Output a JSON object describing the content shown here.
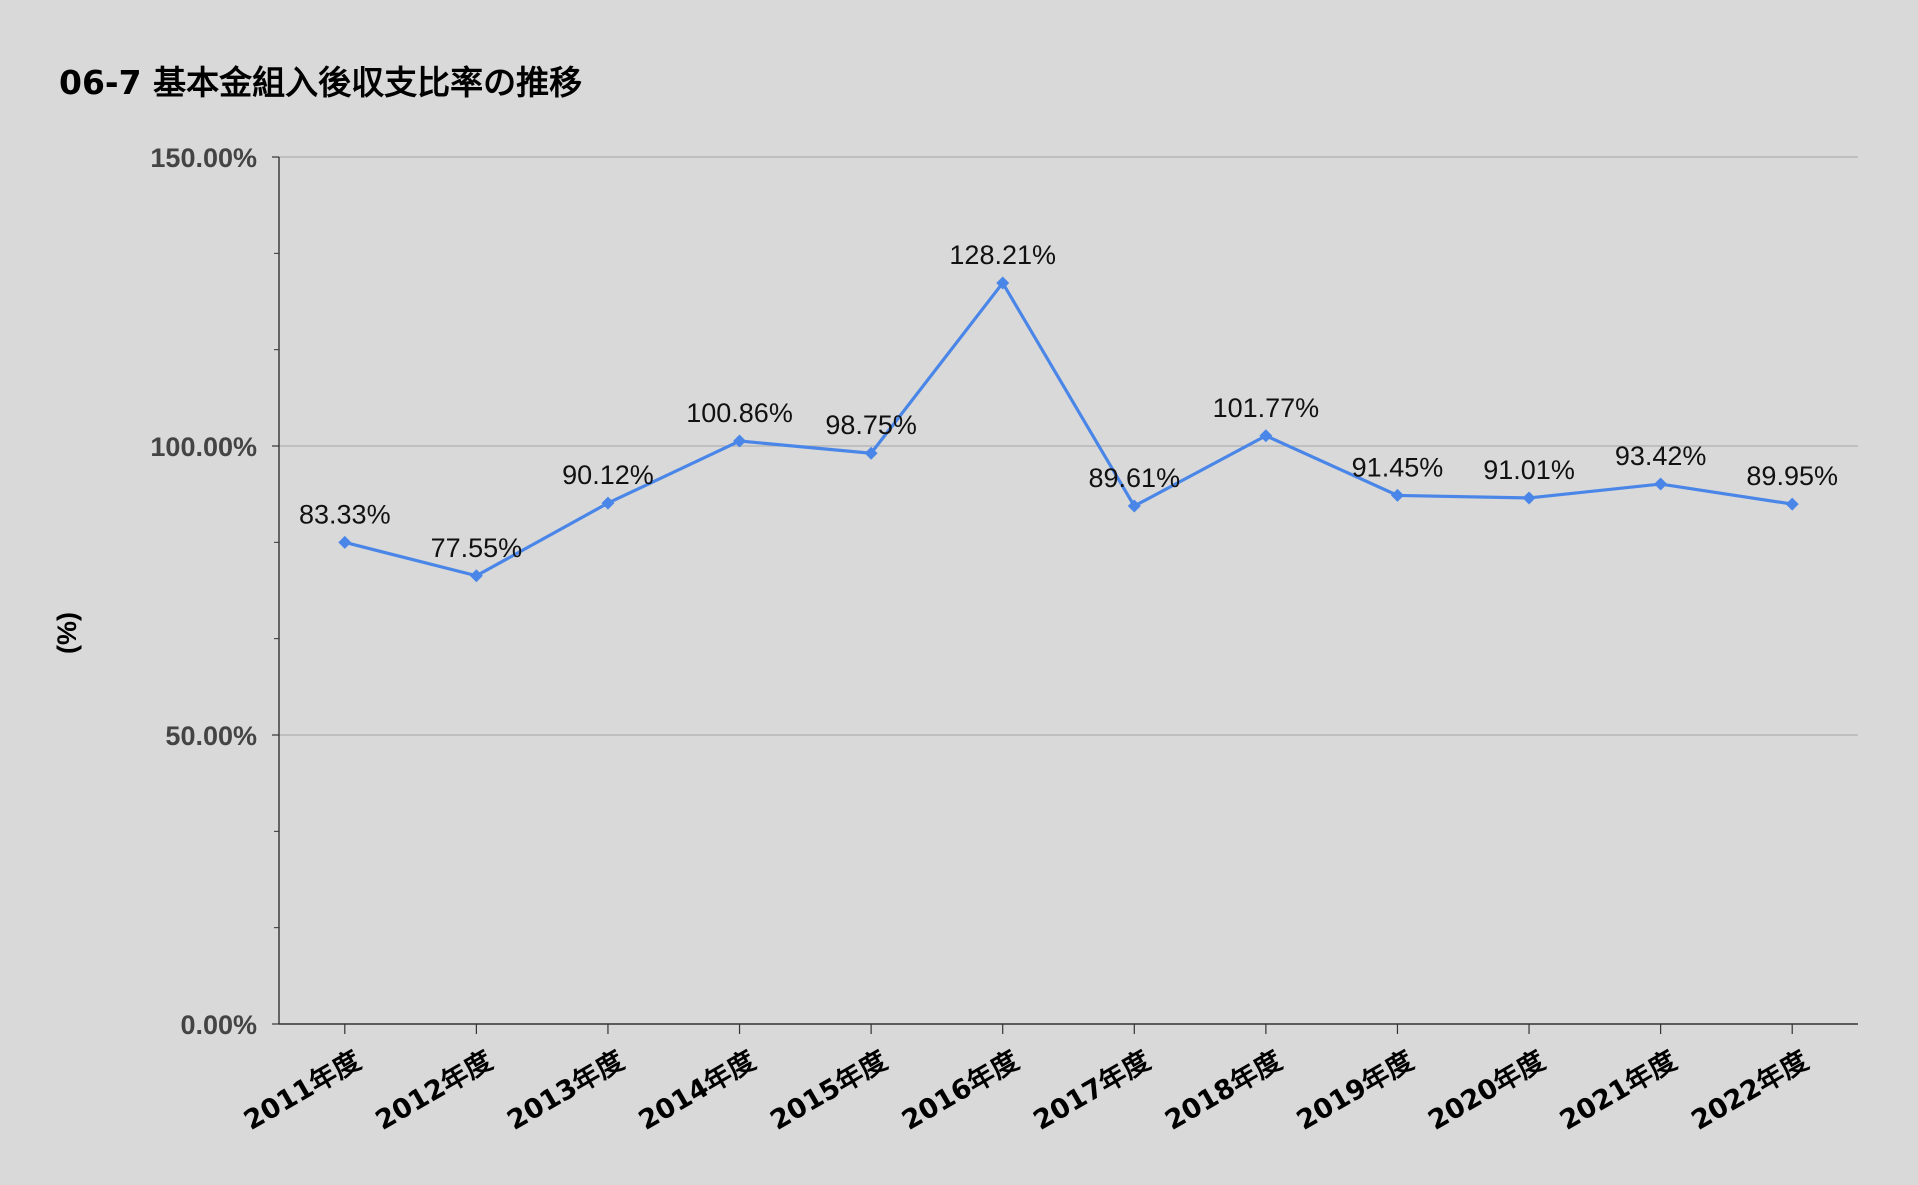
{
  "chart_data": {
    "type": "line",
    "title": "06-7 基本金組入後収支比率の推移",
    "xlabel": "",
    "ylabel": "(%)",
    "categories": [
      "2011年度",
      "2012年度",
      "2013年度",
      "2014年度",
      "2015年度",
      "2016年度",
      "2017年度",
      "2018年度",
      "2019年度",
      "2020年度",
      "2021年度",
      "2022年度"
    ],
    "series": [
      {
        "values": [
          83.33,
          77.55,
          90.12,
          100.86,
          98.75,
          128.21,
          89.61,
          101.77,
          91.45,
          91.01,
          93.42,
          89.95
        ],
        "labels": [
          "83.33%",
          "77.55%",
          "90.12%",
          "100.86%",
          "98.75%",
          "128.21%",
          "89.61%",
          "101.77%",
          "91.45%",
          "91.01%",
          "93.42%",
          "89.95%"
        ]
      }
    ],
    "ylim": [
      0,
      150
    ],
    "yticks": [
      0,
      50,
      100,
      150
    ],
    "ytick_labels": [
      "0.00%",
      "50.00%",
      "100.00%",
      "150.00%"
    ],
    "grid": true,
    "colors": {
      "line": "#4a86e8",
      "grid": "#b0b0b0",
      "axis": "#333333",
      "background": "#d9d9d9"
    }
  }
}
